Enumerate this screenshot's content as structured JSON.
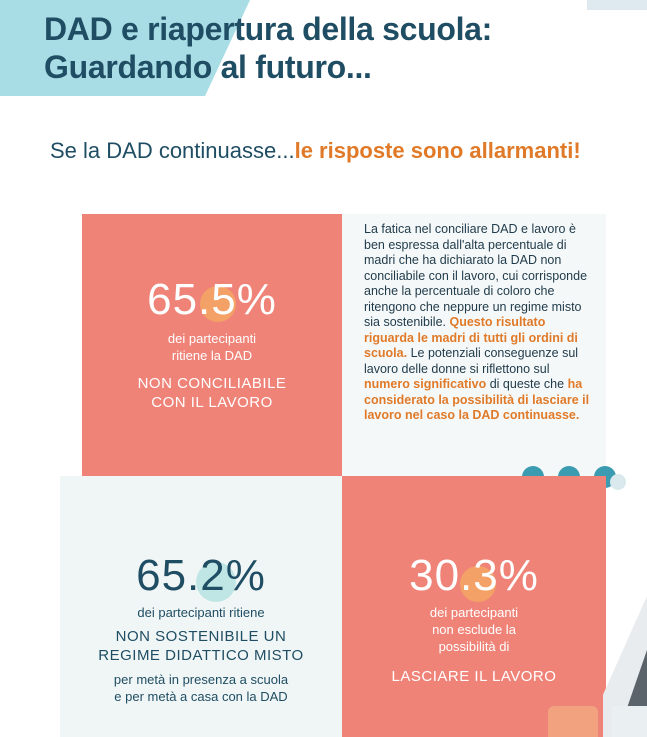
{
  "header": {
    "title_line1": "DAD e riapertura della scuola:",
    "title_line2": "Guardando al futuro..."
  },
  "subtitle": {
    "plain": "Se la DAD continuasse...",
    "accent": "le risposte sono allarmanti!"
  },
  "stats": {
    "top_left": {
      "value": "65.5%",
      "desc_line1": "dei partecipanti",
      "desc_line2": "ritiene la DAD",
      "caps_line1": "NON CONCILIABILE",
      "caps_line2": "CON IL LAVORO"
    },
    "bottom_left": {
      "value": "65.2%",
      "desc_line1": "dei partecipanti ritiene",
      "caps_line1": "NON SOSTENIBILE UN",
      "caps_line2": "REGIME DIDATTICO MISTO",
      "sub_line1": "per metà in presenza a scuola",
      "sub_line2": "e per metà a casa con la DAD"
    },
    "bottom_right": {
      "value": "30.3%",
      "desc_line1": "dei partecipanti",
      "desc_line2": "non esclude la",
      "desc_line3": "possibilità di",
      "caps_line1": "LASCIARE IL LAVORO"
    }
  },
  "explanation": {
    "p1": "La fatica nel conciliare DAD e lavoro è ben espressa dall'alta percentuale di madri che ha dichiarato la DAD non conciliabile con il lavoro, cui corrisponde anche la percentuale di coloro che ritengono che neppure un regime misto sia sostenibile.",
    "p1_highlight": "Questo risultato riguarda le madri di tutti gli ordini di scuola.",
    "p2_a": "Le potenziali conseguenze sul lavoro delle donne si riflettono sul ",
    "p2_hl1": "numero significativo",
    "p2_b": " di queste che ",
    "p2_hl2": "ha considerato la possibilità di lasciare il lavoro nel caso la DAD continuasse."
  },
  "colors": {
    "navy": "#1f4d63",
    "coral": "#ef8378",
    "orange": "#e07a28",
    "teal": "#3b9bb0"
  }
}
